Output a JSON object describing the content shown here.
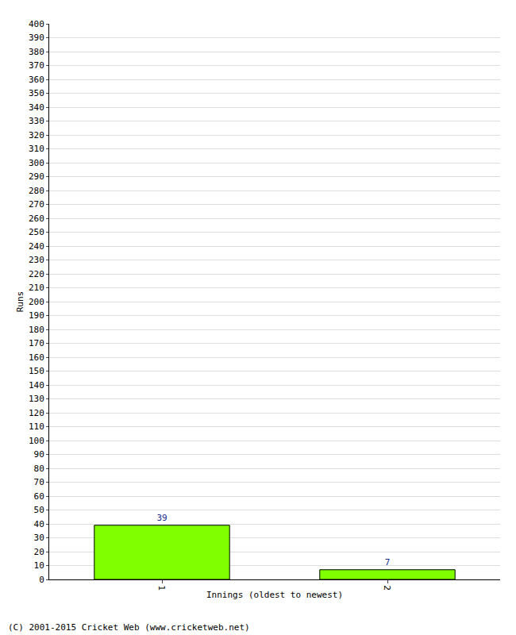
{
  "chart_data": {
    "type": "bar",
    "x_label": "Innings (oldest to newest)",
    "y_label": "Runs",
    "categories": [
      "1",
      "2"
    ],
    "values": [
      39,
      7
    ],
    "color": "#80ff00",
    "ylim": [
      0,
      400
    ],
    "yticks": [
      0,
      10,
      20,
      30,
      40,
      50,
      60,
      70,
      80,
      90,
      100,
      110,
      120,
      130,
      140,
      150,
      160,
      170,
      180,
      190,
      200,
      210,
      220,
      230,
      240,
      250,
      260,
      270,
      280,
      290,
      300,
      310,
      320,
      330,
      340,
      350,
      360,
      370,
      380,
      390,
      400
    ],
    "grid": true,
    "data_labels": true,
    "annotations": [
      "(C) 2001-2015 Cricket Web (www.cricketweb.net)"
    ]
  }
}
